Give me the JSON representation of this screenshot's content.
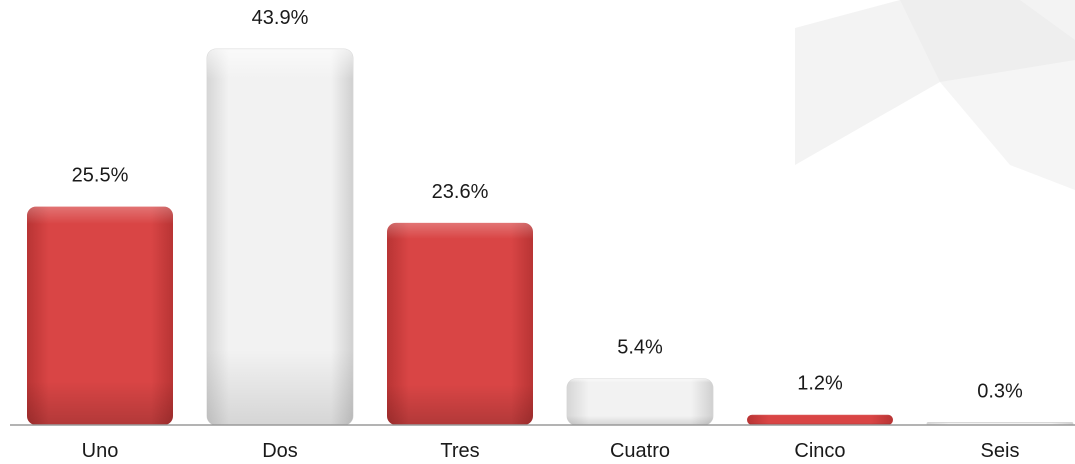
{
  "chart_data": {
    "type": "bar",
    "categories": [
      "Uno",
      "Dos",
      "Tres",
      "Cuatro",
      "Cinco",
      "Seis"
    ],
    "values": [
      25.5,
      43.9,
      23.6,
      5.4,
      1.2,
      0.3
    ],
    "value_labels": [
      "25.5%",
      "43.9%",
      "23.6%",
      "5.4%",
      "1.2%",
      "0.3%"
    ],
    "bar_colors": [
      "#d94545",
      "#ececec",
      "#d94545",
      "#ececec",
      "#d94545",
      "#ececec"
    ],
    "title": "",
    "xlabel": "",
    "ylabel": "",
    "unit": "%",
    "grid": false,
    "legend": "none"
  },
  "colors": {
    "accent_red": "#d94545",
    "bar_grey": "#ececec",
    "watermark": "#f2f2f2",
    "axis": "#9a9a9a"
  },
  "icons": {
    "watermark": "cube-logo-icon"
  }
}
